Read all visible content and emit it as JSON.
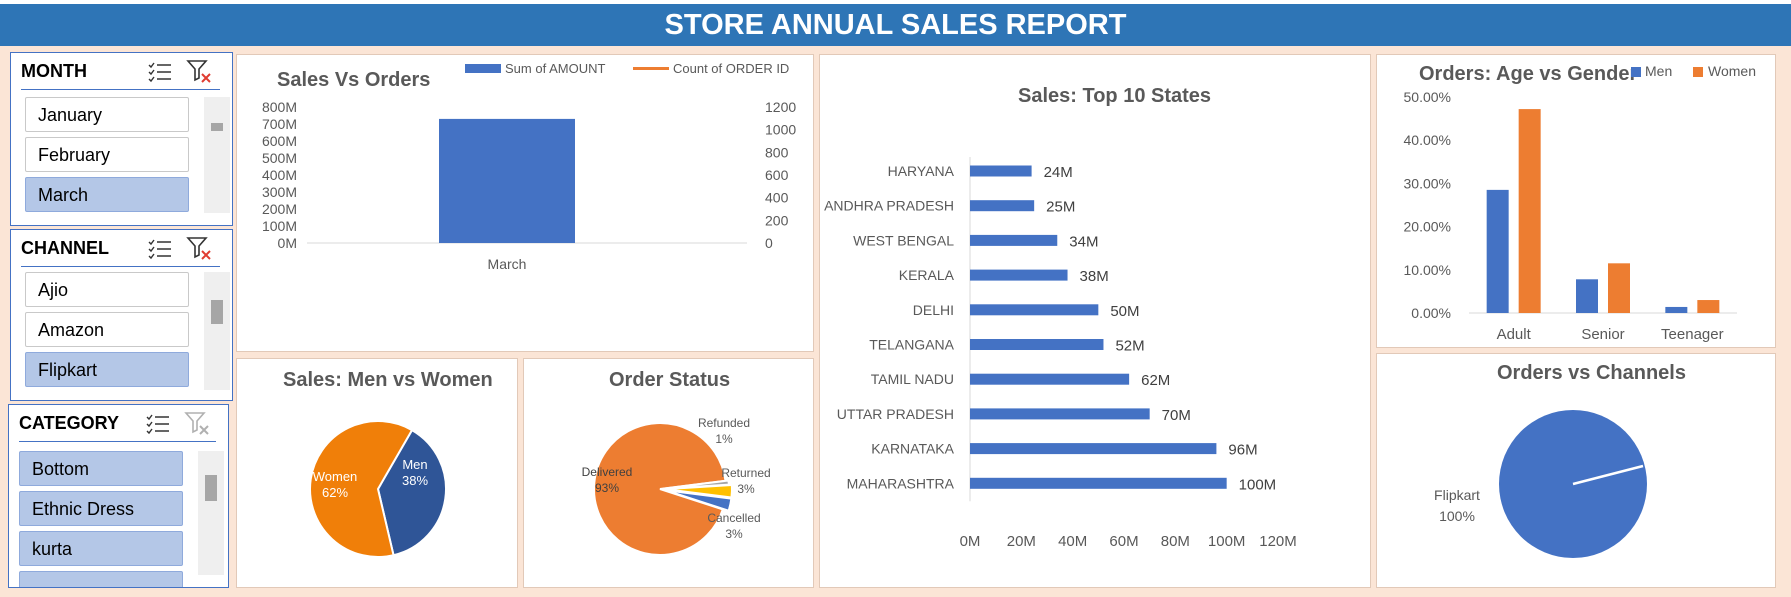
{
  "title": "STORE ANNUAL SALES REPORT",
  "slicers": {
    "month": {
      "header": "MONTH",
      "items": [
        {
          "label": "January",
          "selected": false
        },
        {
          "label": "February",
          "selected": false
        },
        {
          "label": "March",
          "selected": true
        }
      ],
      "filter_active": true
    },
    "channel": {
      "header": "CHANNEL",
      "items": [
        {
          "label": "Ajio",
          "selected": false
        },
        {
          "label": "Amazon",
          "selected": false
        },
        {
          "label": "Flipkart",
          "selected": true
        }
      ],
      "filter_active": true
    },
    "category": {
      "header": "CATEGORY",
      "items": [
        {
          "label": "Bottom",
          "selected": true
        },
        {
          "label": "Ethnic Dress",
          "selected": true
        },
        {
          "label": "kurta",
          "selected": true
        }
      ],
      "filter_active": false
    }
  },
  "colors": {
    "title_bar": "#2e75b6",
    "blue": "#4472c4",
    "orange": "#ed7d31",
    "men_blue": "#2f5597",
    "women_orange": "#f07f09",
    "background": "#fbe5d6",
    "selected_item": "#b4c7e7"
  },
  "chart_data": [
    {
      "type": "bar",
      "title": "Sales Vs Orders",
      "categories": [
        "March"
      ],
      "series": [
        {
          "name": "Sum of AMOUNT",
          "type": "bar",
          "axis": "left",
          "values": [
            730000000
          ]
        },
        {
          "name": "Count of ORDER ID",
          "type": "line",
          "axis": "right",
          "values": [
            null
          ]
        }
      ],
      "y_left_ticks": [
        "800M",
        "700M",
        "600M",
        "500M",
        "400M",
        "300M",
        "200M",
        "100M",
        "0M"
      ],
      "y_right_ticks": [
        "1200",
        "1000",
        "800",
        "600",
        "400",
        "200",
        "0"
      ],
      "ylim_left": [
        0,
        800000000
      ],
      "ylim_right": [
        0,
        1200
      ],
      "legend": "top"
    },
    {
      "type": "pie",
      "title": "Sales: Men vs Women",
      "slices": [
        {
          "label": "Men",
          "value": 38,
          "display": "38%"
        },
        {
          "label": "Women",
          "value": 62,
          "display": "62%"
        }
      ]
    },
    {
      "type": "pie",
      "title": "Order Status",
      "slices": [
        {
          "label": "Delivered",
          "value": 93,
          "display": "93%"
        },
        {
          "label": "Refunded",
          "value": 1,
          "display": "1%"
        },
        {
          "label": "Returned",
          "value": 3,
          "display": "3%"
        },
        {
          "label": "Cancelled",
          "value": 3,
          "display": "3%"
        }
      ]
    },
    {
      "type": "bar",
      "orientation": "horizontal",
      "title": "Sales: Top 10 States",
      "categories": [
        "HARYANA",
        "ANDHRA PRADESH",
        "WEST BENGAL",
        "KERALA",
        "DELHI",
        "TELANGANA",
        "TAMIL NADU",
        "UTTAR PRADESH",
        "KARNATAKA",
        "MAHARASHTRA"
      ],
      "values": [
        24,
        25,
        34,
        38,
        50,
        52,
        62,
        70,
        96,
        100
      ],
      "data_labels": [
        "24M",
        "25M",
        "34M",
        "38M",
        "50M",
        "52M",
        "62M",
        "70M",
        "96M",
        "100M"
      ],
      "x_ticks": [
        "0M",
        "20M",
        "40M",
        "60M",
        "80M",
        "100M",
        "120M"
      ],
      "xlim": [
        0,
        120
      ]
    },
    {
      "type": "bar",
      "title": "Orders: Age vs Gender",
      "categories": [
        "Adult",
        "Senior",
        "Teenager"
      ],
      "series": [
        {
          "name": "Men",
          "values": [
            28.5,
            7.8,
            1.4
          ]
        },
        {
          "name": "Women",
          "values": [
            47.2,
            11.5,
            3.0
          ]
        }
      ],
      "y_ticks": [
        "50.00%",
        "40.00%",
        "30.00%",
        "20.00%",
        "10.00%",
        "0.00%"
      ],
      "ylim": [
        0,
        50
      ],
      "legend": "top-right"
    },
    {
      "type": "pie",
      "title": "Orders vs Channels",
      "slices": [
        {
          "label": "Flipkart",
          "value": 100,
          "display": "100%"
        }
      ]
    }
  ]
}
